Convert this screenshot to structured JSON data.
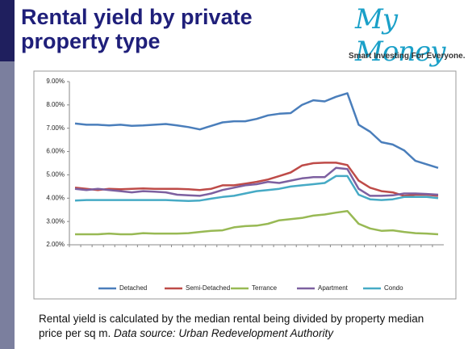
{
  "slide": {
    "title": "Rental yield by private property type",
    "logo": "My Money",
    "tagline": "Smart Investing For Everyone.",
    "caption": "Rental yield is calculated by the median rental being divided by property median price per sq m.",
    "source": "Data source: Urban Redevelopment Authority"
  },
  "chart_data": {
    "type": "line",
    "grid": false,
    "legend": "bottom",
    "categories": [
      null,
      null,
      null,
      null,
      null,
      null,
      null,
      null,
      null,
      null,
      null,
      null,
      null,
      null,
      null,
      null,
      null,
      null,
      null,
      null,
      null,
      null,
      null,
      null,
      null,
      null,
      null,
      null,
      null,
      null,
      null,
      null,
      null
    ],
    "ylim": [
      2,
      9
    ],
    "yticks": [
      {
        "value": 2,
        "label": "2.00%"
      },
      {
        "value": 3,
        "label": "3.00%"
      },
      {
        "value": 4,
        "label": "4.00%"
      },
      {
        "value": 5,
        "label": "5.00%"
      },
      {
        "value": 6,
        "label": "6.00%"
      },
      {
        "value": 7,
        "label": "7.00%"
      },
      {
        "value": 8,
        "label": "8.00%"
      },
      {
        "value": 9,
        "label": "9.00%"
      }
    ],
    "series": [
      {
        "name": "Detached",
        "color": "#4a7ebb",
        "values": [
          7.2,
          7.15,
          7.15,
          7.12,
          7.15,
          7.1,
          7.12,
          7.15,
          7.18,
          7.12,
          7.05,
          6.95,
          7.1,
          7.25,
          7.3,
          7.3,
          7.4,
          7.55,
          7.62,
          7.65,
          8.0,
          8.2,
          8.15,
          8.35,
          8.5,
          7.15,
          6.85,
          6.4,
          6.3,
          6.05,
          5.6,
          5.45,
          5.3
        ]
      },
      {
        "name": "Semi-Detached",
        "color": "#be4b48",
        "values": [
          4.45,
          4.4,
          4.35,
          4.4,
          4.38,
          4.4,
          4.42,
          4.4,
          4.4,
          4.4,
          4.38,
          4.35,
          4.4,
          4.55,
          4.55,
          4.62,
          4.7,
          4.8,
          4.95,
          5.1,
          5.4,
          5.5,
          5.52,
          5.52,
          5.42,
          4.75,
          4.45,
          4.3,
          4.25,
          4.1,
          4.15,
          4.15,
          4.1
        ]
      },
      {
        "name": "Terrance",
        "color": "#98b954",
        "values": [
          2.45,
          2.45,
          2.45,
          2.48,
          2.45,
          2.45,
          2.5,
          2.48,
          2.48,
          2.48,
          2.5,
          2.55,
          2.6,
          2.62,
          2.75,
          2.8,
          2.82,
          2.9,
          3.05,
          3.1,
          3.15,
          3.25,
          3.3,
          3.38,
          3.45,
          2.9,
          2.7,
          2.6,
          2.62,
          2.55,
          2.5,
          2.48,
          2.45
        ]
      },
      {
        "name": "Apartment",
        "color": "#7d60a0",
        "values": [
          4.4,
          4.35,
          4.4,
          4.35,
          4.3,
          4.25,
          4.3,
          4.28,
          4.25,
          4.15,
          4.12,
          4.1,
          4.2,
          4.35,
          4.45,
          4.55,
          4.6,
          4.7,
          4.65,
          4.75,
          4.85,
          4.9,
          4.9,
          5.3,
          5.25,
          4.4,
          4.1,
          4.1,
          4.12,
          4.2,
          4.2,
          4.18,
          4.15
        ]
      },
      {
        "name": "Condo",
        "color": "#46aac5",
        "values": [
          3.9,
          3.92,
          3.92,
          3.92,
          3.92,
          3.92,
          3.92,
          3.92,
          3.92,
          3.9,
          3.88,
          3.9,
          3.98,
          4.05,
          4.1,
          4.2,
          4.3,
          4.35,
          4.4,
          4.5,
          4.55,
          4.6,
          4.65,
          4.95,
          4.95,
          4.15,
          3.95,
          3.92,
          3.95,
          4.05,
          4.05,
          4.05,
          4.0
        ]
      }
    ]
  }
}
